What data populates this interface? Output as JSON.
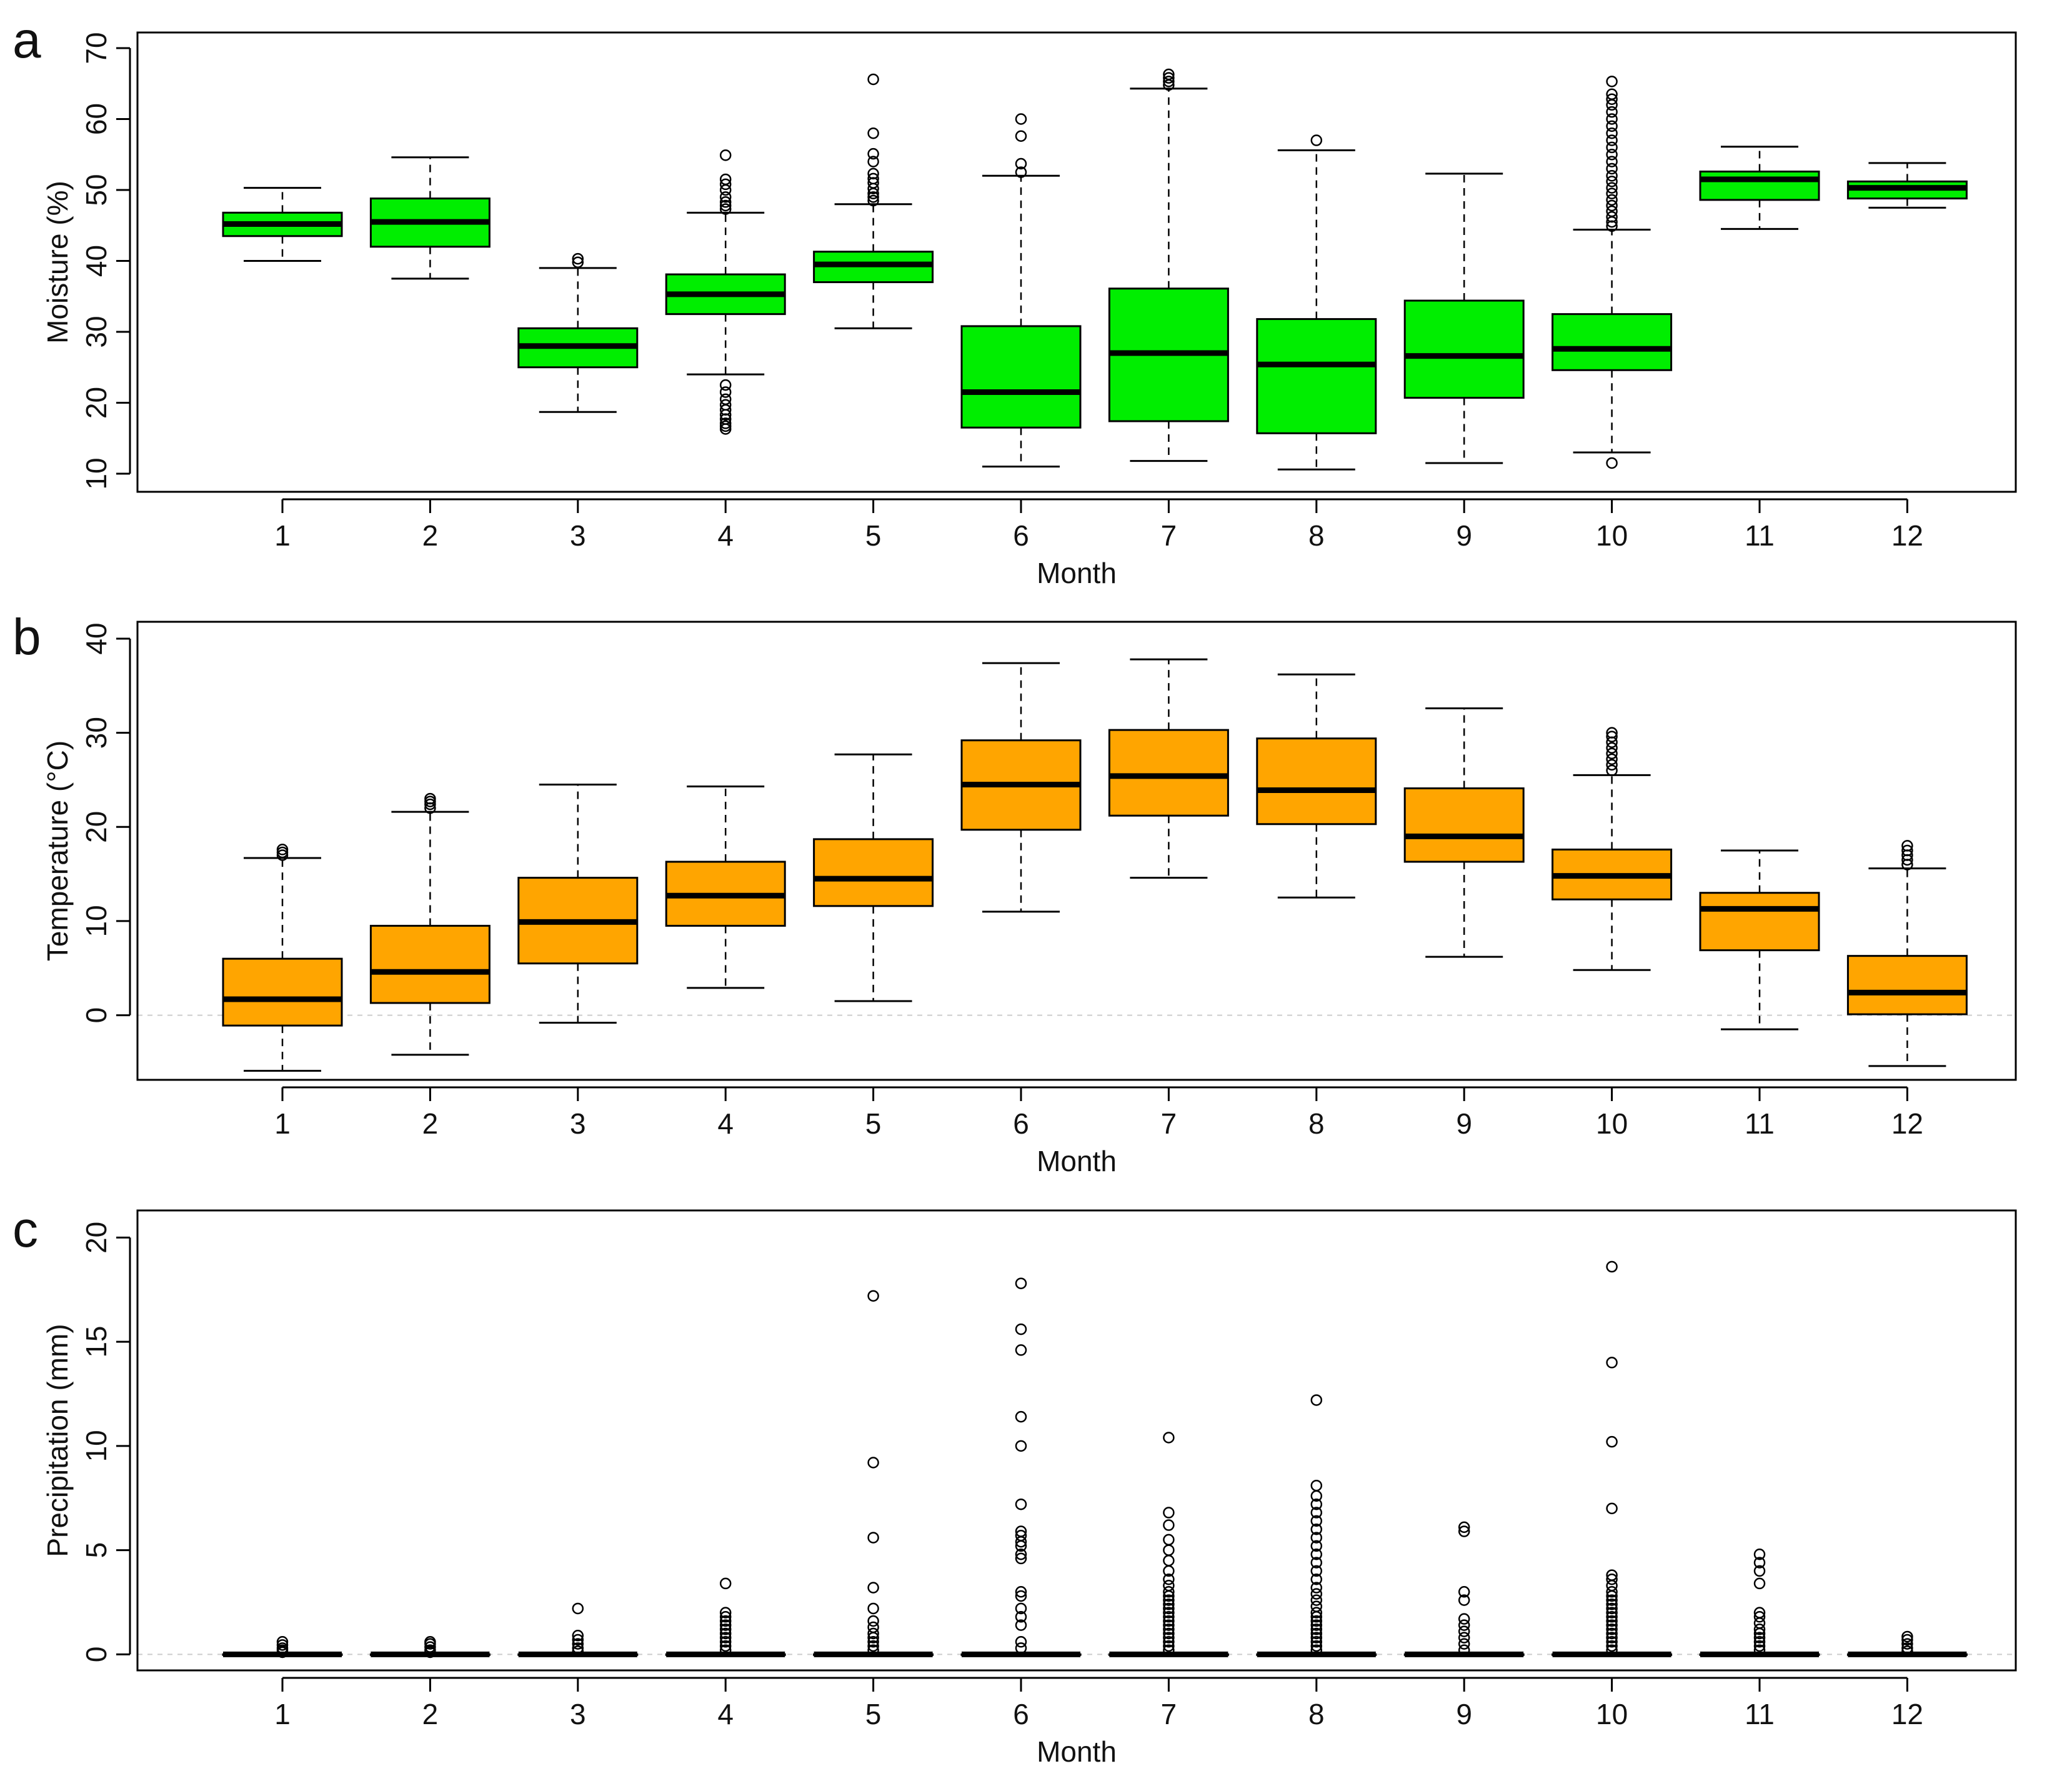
{
  "chart_data": [
    {
      "panel": "a",
      "type": "boxplot",
      "xlabel": "Month",
      "ylabel": "Moisture (%)",
      "ylim": [
        10,
        70
      ],
      "yticks": [
        10,
        20,
        30,
        40,
        50,
        60,
        70
      ],
      "categories": [
        "1",
        "2",
        "3",
        "4",
        "5",
        "6",
        "7",
        "8",
        "9",
        "10",
        "11",
        "12"
      ],
      "fill_color": "#00ee00",
      "zero_line": false,
      "boxes": [
        {
          "whisker_low": 40,
          "q1": 43.5,
          "median": 45.2,
          "q3": 46.8,
          "whisker_high": 50.3,
          "outliers": []
        },
        {
          "whisker_low": 37.5,
          "q1": 42,
          "median": 45.5,
          "q3": 48.8,
          "whisker_high": 54.6,
          "outliers": []
        },
        {
          "whisker_low": 18.7,
          "q1": 25,
          "median": 28,
          "q3": 30.5,
          "whisker_high": 39,
          "outliers": [
            39.8,
            40.3
          ]
        },
        {
          "whisker_low": 24,
          "q1": 32.5,
          "median": 35.3,
          "q3": 38.1,
          "whisker_high": 46.8,
          "outliers": [
            47.3,
            47.8,
            48.3,
            49,
            50,
            50.8,
            51.5,
            54.9,
            22.5,
            21.5,
            20.5,
            19.7,
            19,
            18.3,
            17.7,
            17.1,
            16.7,
            16.3
          ]
        },
        {
          "whisker_low": 30.5,
          "q1": 37,
          "median": 39.5,
          "q3": 41.3,
          "whisker_high": 48,
          "outliers": [
            48.5,
            49,
            49.5,
            50.2,
            51,
            51.6,
            52.3,
            54,
            55.1,
            58,
            65.6
          ]
        },
        {
          "whisker_low": 11,
          "q1": 16.5,
          "median": 21.5,
          "q3": 30.8,
          "whisker_high": 52,
          "outliers": [
            52.5,
            53.7,
            57.6,
            60
          ]
        },
        {
          "whisker_low": 11.8,
          "q1": 17.4,
          "median": 27,
          "q3": 36.1,
          "whisker_high": 64.3,
          "outliers": [
            64.8,
            65.3,
            65.8,
            66.3
          ]
        },
        {
          "whisker_low": 10.6,
          "q1": 15.7,
          "median": 25.4,
          "q3": 31.8,
          "whisker_high": 55.6,
          "outliers": [
            57
          ]
        },
        {
          "whisker_low": 11.5,
          "q1": 20.7,
          "median": 26.6,
          "q3": 34.4,
          "whisker_high": 52.3,
          "outliers": []
        },
        {
          "whisker_low": 13,
          "q1": 24.6,
          "median": 27.6,
          "q3": 32.5,
          "whisker_high": 44.4,
          "outliers": [
            44.9,
            45.5,
            46.2,
            47,
            47.8,
            48.6,
            49.5,
            50.3,
            51.2,
            52,
            53,
            54,
            55,
            56,
            57,
            58,
            59,
            60,
            61,
            62,
            62.8,
            63.5,
            65.3,
            11.5
          ]
        },
        {
          "whisker_low": 44.5,
          "q1": 48.6,
          "median": 51.5,
          "q3": 52.6,
          "whisker_high": 56.1,
          "outliers": []
        },
        {
          "whisker_low": 47.5,
          "q1": 48.8,
          "median": 50.3,
          "q3": 51.2,
          "whisker_high": 53.8,
          "outliers": []
        }
      ]
    },
    {
      "panel": "b",
      "type": "boxplot",
      "xlabel": "Month",
      "ylabel": "Temperature (°C)",
      "ylim": [
        -6.8,
        40
      ],
      "yticks": [
        0,
        10,
        20,
        30,
        40
      ],
      "categories": [
        "1",
        "2",
        "3",
        "4",
        "5",
        "6",
        "7",
        "8",
        "9",
        "10",
        "11",
        "12"
      ],
      "fill_color": "#ffa500",
      "zero_line": true,
      "boxes": [
        {
          "whisker_low": -5.9,
          "q1": -1.1,
          "median": 1.7,
          "q3": 6,
          "whisker_high": 16.7,
          "outliers": [
            17,
            17.3,
            17.6
          ]
        },
        {
          "whisker_low": -4.2,
          "q1": 1.3,
          "median": 4.6,
          "q3": 9.5,
          "whisker_high": 21.6,
          "outliers": [
            22,
            22.4,
            22.7,
            23
          ]
        },
        {
          "whisker_low": -0.8,
          "q1": 5.5,
          "median": 9.9,
          "q3": 14.6,
          "whisker_high": 24.5,
          "outliers": []
        },
        {
          "whisker_low": 2.9,
          "q1": 9.5,
          "median": 12.7,
          "q3": 16.3,
          "whisker_high": 24.3,
          "outliers": []
        },
        {
          "whisker_low": 1.5,
          "q1": 11.6,
          "median": 14.5,
          "q3": 18.7,
          "whisker_high": 27.7,
          "outliers": []
        },
        {
          "whisker_low": 11,
          "q1": 19.7,
          "median": 24.5,
          "q3": 29.2,
          "whisker_high": 37.4,
          "outliers": []
        },
        {
          "whisker_low": 14.6,
          "q1": 21.2,
          "median": 25.4,
          "q3": 30.3,
          "whisker_high": 37.8,
          "outliers": []
        },
        {
          "whisker_low": 12.5,
          "q1": 20.3,
          "median": 23.9,
          "q3": 29.4,
          "whisker_high": 36.2,
          "outliers": []
        },
        {
          "whisker_low": 6.2,
          "q1": 16.3,
          "median": 19,
          "q3": 24.1,
          "whisker_high": 32.6,
          "outliers": []
        },
        {
          "whisker_low": 4.8,
          "q1": 12.3,
          "median": 14.8,
          "q3": 17.6,
          "whisker_high": 25.5,
          "outliers": [
            26,
            26.6,
            27.2,
            27.8,
            28.4,
            29,
            29.6,
            30
          ]
        },
        {
          "whisker_low": -1.5,
          "q1": 6.9,
          "median": 11.3,
          "q3": 13,
          "whisker_high": 17.5,
          "outliers": []
        },
        {
          "whisker_low": -5.4,
          "q1": 0.1,
          "median": 2.4,
          "q3": 6.3,
          "whisker_high": 15.6,
          "outliers": [
            16,
            16.5,
            17,
            17.5,
            18
          ]
        }
      ]
    },
    {
      "panel": "c",
      "type": "boxplot",
      "xlabel": "Month",
      "ylabel": "Precipitation (mm)",
      "ylim": [
        -0.8,
        20.4
      ],
      "yticks": [
        0,
        5,
        10,
        15,
        20
      ],
      "categories": [
        "1",
        "2",
        "3",
        "4",
        "5",
        "6",
        "7",
        "8",
        "9",
        "10",
        "11",
        "12"
      ],
      "fill_color": "#ffffff",
      "zero_line": true,
      "boxes": [
        {
          "whisker_low": 0,
          "q1": 0,
          "median": 0,
          "q3": 0,
          "whisker_high": 0,
          "outliers": [
            0.1,
            0.2,
            0.3,
            0.45,
            0.6
          ]
        },
        {
          "whisker_low": 0,
          "q1": 0,
          "median": 0,
          "q3": 0,
          "whisker_high": 0,
          "outliers": [
            0.1,
            0.2,
            0.35,
            0.5,
            0.6
          ]
        },
        {
          "whisker_low": 0,
          "q1": 0,
          "median": 0,
          "q3": 0,
          "whisker_high": 0,
          "outliers": [
            0.15,
            0.3,
            0.5,
            0.7,
            0.9,
            2.2
          ]
        },
        {
          "whisker_low": 0,
          "q1": 0,
          "median": 0,
          "q3": 0,
          "whisker_high": 0,
          "outliers": [
            0.2,
            0.4,
            0.6,
            0.8,
            1,
            1.2,
            1.4,
            1.6,
            1.8,
            2,
            3.4
          ]
        },
        {
          "whisker_low": 0,
          "q1": 0,
          "median": 0,
          "q3": 0,
          "whisker_high": 0,
          "outliers": [
            0.2,
            0.4,
            0.6,
            0.8,
            1,
            1.3,
            1.6,
            2.2,
            3.2,
            5.6,
            9.2,
            17.2
          ]
        },
        {
          "whisker_low": 0,
          "q1": 0,
          "median": 0,
          "q3": 0,
          "whisker_high": 0,
          "outliers": [
            0.3,
            0.6,
            1.4,
            1.8,
            2.2,
            2.8,
            3,
            4.6,
            4.8,
            5.2,
            5.4,
            5.7,
            5.9,
            7.2,
            10,
            11.4,
            14.6,
            15.6,
            17.8
          ]
        },
        {
          "whisker_low": 0,
          "q1": 0,
          "median": 0,
          "q3": 0,
          "whisker_high": 0,
          "outliers": [
            0.2,
            0.4,
            0.6,
            0.8,
            1,
            1.2,
            1.4,
            1.6,
            1.8,
            2,
            2.2,
            2.4,
            2.6,
            2.8,
            3,
            3.3,
            3.6,
            4,
            4.5,
            5,
            5.5,
            6.2,
            6.8,
            10.4
          ]
        },
        {
          "whisker_low": 0,
          "q1": 0,
          "median": 0,
          "q3": 0,
          "whisker_high": 0,
          "outliers": [
            0.2,
            0.4,
            0.6,
            0.8,
            1,
            1.2,
            1.4,
            1.6,
            1.8,
            2,
            2.3,
            2.6,
            2.9,
            3.2,
            3.6,
            4,
            4.4,
            4.8,
            5.2,
            5.6,
            6,
            6.4,
            6.8,
            7.2,
            7.6,
            8.1,
            12.2
          ]
        },
        {
          "whisker_low": 0,
          "q1": 0,
          "median": 0,
          "q3": 0,
          "whisker_high": 0,
          "outliers": [
            0.2,
            0.5,
            0.8,
            1.1,
            1.4,
            1.7,
            2.6,
            3,
            5.9,
            6.1
          ]
        },
        {
          "whisker_low": 0,
          "q1": 0,
          "median": 0,
          "q3": 0,
          "whisker_high": 0,
          "outliers": [
            0.2,
            0.4,
            0.6,
            0.8,
            1,
            1.2,
            1.4,
            1.6,
            1.8,
            2,
            2.2,
            2.4,
            2.6,
            2.8,
            3,
            3.3,
            3.6,
            3.8,
            7,
            10.2,
            14,
            18.6
          ]
        },
        {
          "whisker_low": 0,
          "q1": 0,
          "median": 0,
          "q3": 0,
          "whisker_high": 0,
          "outliers": [
            0.2,
            0.4,
            0.6,
            0.8,
            1,
            1.2,
            1.5,
            1.8,
            2,
            3.4,
            4,
            4.4,
            4.8
          ]
        },
        {
          "whisker_low": 0,
          "q1": 0,
          "median": 0,
          "q3": 0,
          "whisker_high": 0,
          "outliers": [
            0.15,
            0.3,
            0.5,
            0.7,
            0.85
          ]
        }
      ]
    }
  ]
}
